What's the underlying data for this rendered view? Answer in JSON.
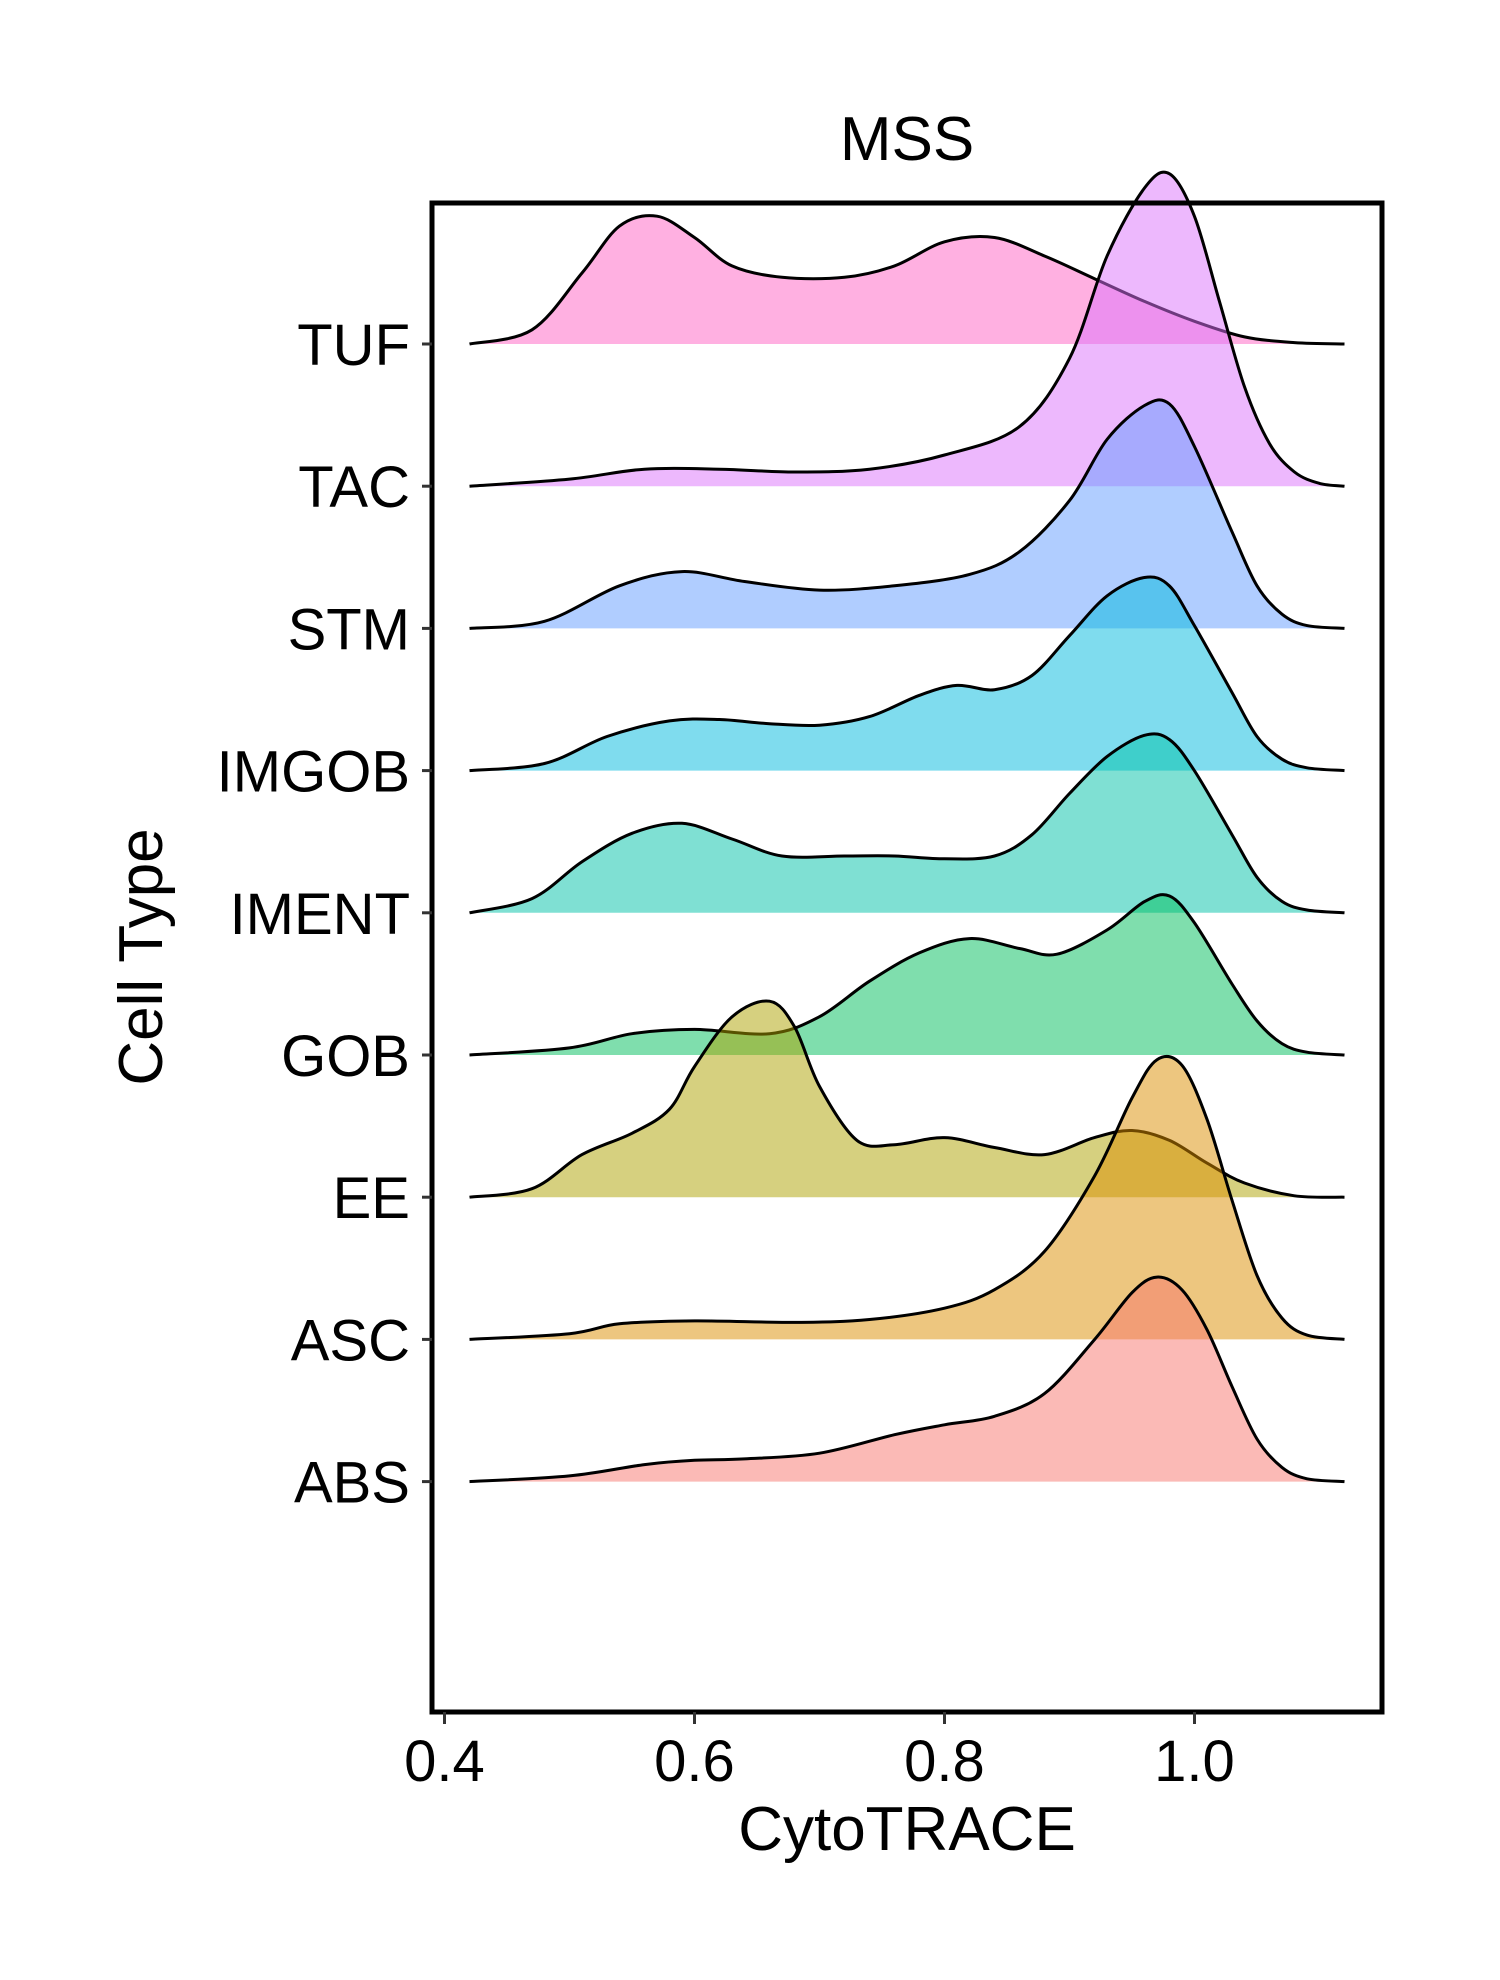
{
  "chart_data": {
    "type": "ridgeline",
    "title": "MSS",
    "xlabel": "CytoTRACE",
    "ylabel": "Cell Type",
    "xlim": [
      0.39,
      1.15
    ],
    "x_ticks": [
      {
        "value": 0.4,
        "label": "0.4"
      },
      {
        "value": 0.6,
        "label": "0.6"
      },
      {
        "value": 0.8,
        "label": "0.8"
      },
      {
        "value": 1.0,
        "label": "1.0"
      }
    ],
    "series": [
      {
        "name": "ABS",
        "color": "#F8766D",
        "density": [
          [
            0.42,
            0
          ],
          [
            0.5,
            0.04
          ],
          [
            0.56,
            0.12
          ],
          [
            0.6,
            0.15
          ],
          [
            0.64,
            0.16
          ],
          [
            0.7,
            0.2
          ],
          [
            0.76,
            0.33
          ],
          [
            0.8,
            0.4
          ],
          [
            0.84,
            0.46
          ],
          [
            0.88,
            0.62
          ],
          [
            0.92,
            1.0
          ],
          [
            0.95,
            1.33
          ],
          [
            0.97,
            1.44
          ],
          [
            0.99,
            1.35
          ],
          [
            1.01,
            1.07
          ],
          [
            1.03,
            0.67
          ],
          [
            1.05,
            0.3
          ],
          [
            1.07,
            0.1
          ],
          [
            1.09,
            0.02
          ],
          [
            1.12,
            0
          ]
        ]
      },
      {
        "name": "ASC",
        "color": "#DB8E00",
        "density": [
          [
            0.42,
            0
          ],
          [
            0.5,
            0.04
          ],
          [
            0.54,
            0.11
          ],
          [
            0.6,
            0.13
          ],
          [
            0.68,
            0.12
          ],
          [
            0.74,
            0.14
          ],
          [
            0.8,
            0.22
          ],
          [
            0.84,
            0.35
          ],
          [
            0.88,
            0.62
          ],
          [
            0.92,
            1.15
          ],
          [
            0.95,
            1.7
          ],
          [
            0.97,
            1.97
          ],
          [
            0.99,
            1.93
          ],
          [
            1.01,
            1.55
          ],
          [
            1.03,
            0.98
          ],
          [
            1.05,
            0.45
          ],
          [
            1.07,
            0.15
          ],
          [
            1.09,
            0.03
          ],
          [
            1.12,
            0
          ]
        ]
      },
      {
        "name": "EE",
        "color": "#AEA200",
        "density": [
          [
            0.42,
            0
          ],
          [
            0.47,
            0.06
          ],
          [
            0.51,
            0.3
          ],
          [
            0.55,
            0.45
          ],
          [
            0.58,
            0.62
          ],
          [
            0.6,
            0.92
          ],
          [
            0.63,
            1.27
          ],
          [
            0.66,
            1.38
          ],
          [
            0.68,
            1.2
          ],
          [
            0.7,
            0.78
          ],
          [
            0.73,
            0.4
          ],
          [
            0.76,
            0.37
          ],
          [
            0.8,
            0.42
          ],
          [
            0.84,
            0.35
          ],
          [
            0.88,
            0.3
          ],
          [
            0.92,
            0.42
          ],
          [
            0.95,
            0.47
          ],
          [
            0.98,
            0.4
          ],
          [
            1.01,
            0.24
          ],
          [
            1.04,
            0.1
          ],
          [
            1.08,
            0.01
          ],
          [
            1.12,
            0
          ]
        ]
      },
      {
        "name": "GOB",
        "color": "#00BD5C",
        "density": [
          [
            0.42,
            0
          ],
          [
            0.5,
            0.05
          ],
          [
            0.55,
            0.15
          ],
          [
            0.6,
            0.18
          ],
          [
            0.66,
            0.15
          ],
          [
            0.7,
            0.27
          ],
          [
            0.74,
            0.52
          ],
          [
            0.78,
            0.72
          ],
          [
            0.82,
            0.82
          ],
          [
            0.86,
            0.75
          ],
          [
            0.89,
            0.71
          ],
          [
            0.93,
            0.88
          ],
          [
            0.96,
            1.08
          ],
          [
            0.98,
            1.12
          ],
          [
            1.0,
            0.93
          ],
          [
            1.03,
            0.5
          ],
          [
            1.05,
            0.24
          ],
          [
            1.07,
            0.08
          ],
          [
            1.09,
            0.02
          ],
          [
            1.12,
            0
          ]
        ]
      },
      {
        "name": "IMENT",
        "color": "#00C1A7",
        "density": [
          [
            0.42,
            0
          ],
          [
            0.47,
            0.1
          ],
          [
            0.51,
            0.36
          ],
          [
            0.55,
            0.56
          ],
          [
            0.59,
            0.63
          ],
          [
            0.63,
            0.52
          ],
          [
            0.67,
            0.4
          ],
          [
            0.72,
            0.4
          ],
          [
            0.76,
            0.4
          ],
          [
            0.8,
            0.38
          ],
          [
            0.84,
            0.4
          ],
          [
            0.87,
            0.55
          ],
          [
            0.9,
            0.84
          ],
          [
            0.93,
            1.1
          ],
          [
            0.96,
            1.25
          ],
          [
            0.98,
            1.22
          ],
          [
            1.0,
            1.0
          ],
          [
            1.03,
            0.55
          ],
          [
            1.05,
            0.25
          ],
          [
            1.07,
            0.08
          ],
          [
            1.09,
            0.02
          ],
          [
            1.12,
            0
          ]
        ]
      },
      {
        "name": "IMGOB",
        "color": "#00BADE",
        "density": [
          [
            0.42,
            0
          ],
          [
            0.48,
            0.05
          ],
          [
            0.53,
            0.24
          ],
          [
            0.58,
            0.35
          ],
          [
            0.62,
            0.36
          ],
          [
            0.66,
            0.33
          ],
          [
            0.7,
            0.32
          ],
          [
            0.74,
            0.38
          ],
          [
            0.78,
            0.53
          ],
          [
            0.81,
            0.6
          ],
          [
            0.84,
            0.57
          ],
          [
            0.87,
            0.67
          ],
          [
            0.9,
            0.95
          ],
          [
            0.93,
            1.23
          ],
          [
            0.96,
            1.36
          ],
          [
            0.98,
            1.3
          ],
          [
            1.0,
            1.02
          ],
          [
            1.03,
            0.55
          ],
          [
            1.05,
            0.24
          ],
          [
            1.07,
            0.08
          ],
          [
            1.09,
            0.02
          ],
          [
            1.12,
            0
          ]
        ]
      },
      {
        "name": "STM",
        "color": "#619CFF",
        "density": [
          [
            0.42,
            0
          ],
          [
            0.48,
            0.05
          ],
          [
            0.54,
            0.3
          ],
          [
            0.59,
            0.4
          ],
          [
            0.64,
            0.33
          ],
          [
            0.7,
            0.27
          ],
          [
            0.76,
            0.3
          ],
          [
            0.82,
            0.38
          ],
          [
            0.86,
            0.54
          ],
          [
            0.9,
            0.9
          ],
          [
            0.93,
            1.33
          ],
          [
            0.96,
            1.57
          ],
          [
            0.98,
            1.58
          ],
          [
            1.0,
            1.28
          ],
          [
            1.03,
            0.68
          ],
          [
            1.05,
            0.3
          ],
          [
            1.07,
            0.1
          ],
          [
            1.09,
            0.02
          ],
          [
            1.12,
            0
          ]
        ]
      },
      {
        "name": "TAC",
        "color": "#DB72FB",
        "density": [
          [
            0.42,
            0
          ],
          [
            0.5,
            0.05
          ],
          [
            0.56,
            0.12
          ],
          [
            0.62,
            0.12
          ],
          [
            0.68,
            0.1
          ],
          [
            0.74,
            0.12
          ],
          [
            0.8,
            0.22
          ],
          [
            0.86,
            0.42
          ],
          [
            0.9,
            0.9
          ],
          [
            0.93,
            1.62
          ],
          [
            0.96,
            2.1
          ],
          [
            0.98,
            2.2
          ],
          [
            1.0,
            1.9
          ],
          [
            1.02,
            1.3
          ],
          [
            1.04,
            0.7
          ],
          [
            1.06,
            0.3
          ],
          [
            1.08,
            0.1
          ],
          [
            1.1,
            0.02
          ],
          [
            1.12,
            0
          ]
        ]
      },
      {
        "name": "TUF",
        "color": "#FF61C3",
        "density": [
          [
            0.42,
            0
          ],
          [
            0.47,
            0.1
          ],
          [
            0.51,
            0.5
          ],
          [
            0.54,
            0.83
          ],
          [
            0.57,
            0.9
          ],
          [
            0.6,
            0.75
          ],
          [
            0.63,
            0.55
          ],
          [
            0.67,
            0.47
          ],
          [
            0.72,
            0.47
          ],
          [
            0.76,
            0.55
          ],
          [
            0.8,
            0.72
          ],
          [
            0.84,
            0.75
          ],
          [
            0.88,
            0.62
          ],
          [
            0.92,
            0.46
          ],
          [
            0.96,
            0.3
          ],
          [
            1.0,
            0.16
          ],
          [
            1.04,
            0.05
          ],
          [
            1.08,
            0.01
          ],
          [
            1.12,
            0
          ]
        ]
      }
    ]
  }
}
